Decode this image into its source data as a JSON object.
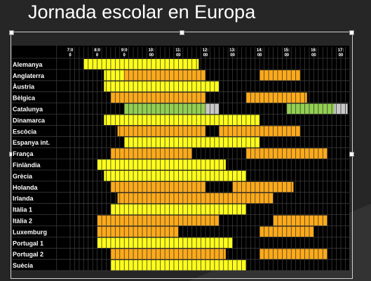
{
  "slide": {
    "title": "Jornada escolar en Europa"
  },
  "colors": {
    "background": "#262626",
    "grid": "#000000",
    "yellow": "#ffff19",
    "orange": "#ffaa19",
    "green": "#92d050",
    "gray": "#c8c8c8",
    "label": "#ffffff",
    "tick": "#ffffff"
  },
  "chart_data": {
    "type": "table",
    "title": "",
    "xlabel": "",
    "ylabel": "",
    "grid": true,
    "slot_minutes": 10,
    "xlim_hours": [
      7.0,
      17.5
    ],
    "x_ticks": [
      {
        "hour": 7,
        "label_top": "7:0",
        "label_bottom": "0"
      },
      {
        "hour": 8,
        "label_top": "8:0",
        "label_bottom": "0"
      },
      {
        "hour": 9,
        "label_top": "9:0",
        "label_bottom": "0"
      },
      {
        "hour": 10,
        "label_top": "10:",
        "label_bottom": "00"
      },
      {
        "hour": 11,
        "label_top": "11:",
        "label_bottom": "00"
      },
      {
        "hour": 12,
        "label_top": "12:",
        "label_bottom": "00"
      },
      {
        "hour": 13,
        "label_top": "13:",
        "label_bottom": "00"
      },
      {
        "hour": 14,
        "label_top": "14:",
        "label_bottom": "00"
      },
      {
        "hour": 15,
        "label_top": "15:",
        "label_bottom": "00"
      },
      {
        "hour": 16,
        "label_top": "16:",
        "label_bottom": "00"
      },
      {
        "hour": 17,
        "label_top": "17:",
        "label_bottom": "00"
      }
    ],
    "rows": [
      {
        "name": "Alemanya",
        "segments": [
          {
            "start": 7.5,
            "end": 11.75,
            "color": "yellow"
          }
        ]
      },
      {
        "name": "Anglaterra",
        "segments": [
          {
            "start": 8.25,
            "end": 9.0,
            "color": "yellow"
          },
          {
            "start": 9.0,
            "end": 12.0,
            "color": "orange"
          },
          {
            "start": 14.0,
            "end": 15.5,
            "color": "orange"
          }
        ]
      },
      {
        "name": "Àustria",
        "segments": [
          {
            "start": 8.25,
            "end": 12.5,
            "color": "yellow"
          }
        ]
      },
      {
        "name": "Bèlgica",
        "segments": [
          {
            "start": 8.5,
            "end": 12.0,
            "color": "orange"
          },
          {
            "start": 13.5,
            "end": 15.75,
            "color": "orange"
          }
        ]
      },
      {
        "name": "Catalunya",
        "segments": [
          {
            "start": 9.0,
            "end": 12.0,
            "color": "green"
          },
          {
            "start": 12.0,
            "end": 12.5,
            "color": "gray"
          },
          {
            "start": 15.0,
            "end": 16.75,
            "color": "green"
          },
          {
            "start": 16.75,
            "end": 17.25,
            "color": "gray"
          }
        ]
      },
      {
        "name": "Dinamarca",
        "segments": [
          {
            "start": 8.25,
            "end": 14.0,
            "color": "yellow"
          }
        ]
      },
      {
        "name": "Escòcia",
        "segments": [
          {
            "start": 8.75,
            "end": 12.0,
            "color": "orange"
          },
          {
            "start": 12.5,
            "end": 15.5,
            "color": "orange"
          }
        ]
      },
      {
        "name": "Espanya int.",
        "segments": [
          {
            "start": 9.0,
            "end": 14.0,
            "color": "yellow"
          }
        ]
      },
      {
        "name": "França",
        "segments": [
          {
            "start": 8.5,
            "end": 11.5,
            "color": "orange"
          },
          {
            "start": 13.5,
            "end": 16.5,
            "color": "orange"
          }
        ]
      },
      {
        "name": "Finlàndia",
        "segments": [
          {
            "start": 8.0,
            "end": 12.75,
            "color": "yellow"
          }
        ]
      },
      {
        "name": "Grècia",
        "segments": [
          {
            "start": 8.25,
            "end": 13.5,
            "color": "yellow"
          }
        ]
      },
      {
        "name": "Holanda",
        "segments": [
          {
            "start": 8.5,
            "end": 12.0,
            "color": "orange"
          },
          {
            "start": 13.0,
            "end": 15.25,
            "color": "orange"
          }
        ]
      },
      {
        "name": "Irlanda",
        "segments": [
          {
            "start": 8.75,
            "end": 12.5,
            "color": "orange"
          },
          {
            "start": 12.5,
            "end": 14.5,
            "color": "orange"
          }
        ]
      },
      {
        "name": "Itàlia 1",
        "segments": [
          {
            "start": 8.5,
            "end": 13.5,
            "color": "yellow"
          }
        ]
      },
      {
        "name": "Itàlia 2",
        "segments": [
          {
            "start": 8.0,
            "end": 12.5,
            "color": "orange"
          },
          {
            "start": 14.5,
            "end": 16.5,
            "color": "orange"
          }
        ]
      },
      {
        "name": "Luxemburg",
        "segments": [
          {
            "start": 8.0,
            "end": 11.0,
            "color": "orange"
          },
          {
            "start": 14.0,
            "end": 16.0,
            "color": "orange"
          }
        ]
      },
      {
        "name": "Portugal 1",
        "segments": [
          {
            "start": 8.0,
            "end": 13.0,
            "color": "yellow"
          }
        ]
      },
      {
        "name": "Portugal 2",
        "segments": [
          {
            "start": 8.5,
            "end": 12.75,
            "color": "orange"
          },
          {
            "start": 14.0,
            "end": 16.5,
            "color": "orange"
          }
        ]
      },
      {
        "name": "Suècia",
        "segments": [
          {
            "start": 8.5,
            "end": 13.5,
            "color": "yellow"
          }
        ]
      }
    ]
  }
}
